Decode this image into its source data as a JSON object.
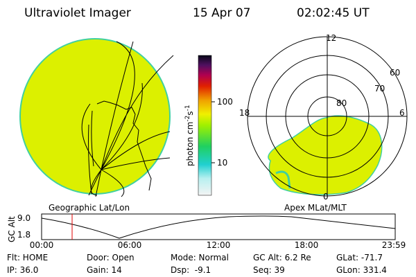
{
  "header": {
    "instrument": "Ultraviolet Imager",
    "date": "15 Apr 07",
    "time": "02:02:45 UT"
  },
  "colorbar": {
    "label": "photon cm",
    "exp1": "-2",
    "unit2": "s",
    "exp2": "-1",
    "ticks": [
      "100",
      "10"
    ]
  },
  "polar": {
    "labels": [
      "12",
      "60",
      "70",
      "80",
      "18",
      "6",
      "0"
    ]
  },
  "panels": {
    "left": "Geographic Lat/Lon",
    "right": "Apex MLat/MLT"
  },
  "altitude_plot": {
    "ylabel": "GC Alt",
    "yticks": [
      "9.0",
      "1.8"
    ],
    "xticks": [
      "00:00",
      "06:00",
      "12:00",
      "18:00",
      "23:59"
    ]
  },
  "info": {
    "rows": [
      [
        "Flt: HOME",
        "Door: Open",
        "Mode: Normal",
        "GC Alt: 6.2 Re",
        "GLat: -71.7"
      ],
      [
        "IP: 36.0",
        "Gain: 14",
        "Dsp:  -9.1",
        "Seq: 39",
        "GLon: 331.4"
      ]
    ]
  }
}
